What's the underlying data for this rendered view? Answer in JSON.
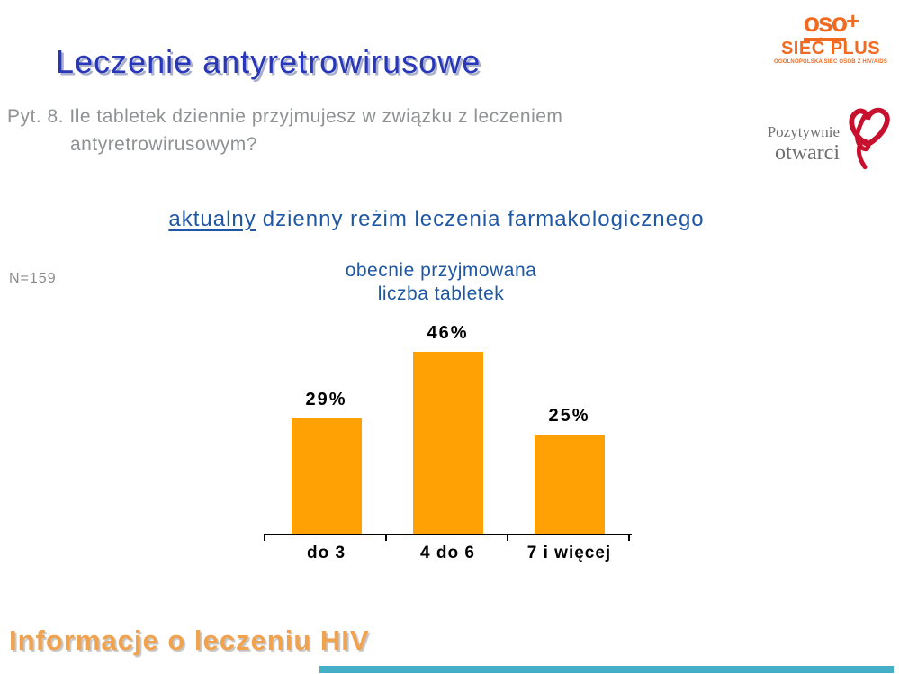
{
  "slide": {
    "title": "Leczenie antyretrowirusowe",
    "question_line1": "Pyt. 8. Ile tabletek dziennie przyjmujesz w związku z leczeniem",
    "question_line2": "antyretrowirusowym?",
    "subtitle_underlined": "aktualny",
    "subtitle_rest": "dzienny reżim leczenia farmakologicznego",
    "sample_size": "N=159",
    "footer_title": "Informacje o leczeniu HIV"
  },
  "logos": {
    "siec_plus": {
      "glyph_oso": "oso",
      "glyph_plus": "+",
      "name": "SIEĆ PLUS",
      "tagline": "OGÓLNOPOLSKA SIEĆ OSÓB Z HIV/AIDS",
      "color": "#F26A21"
    },
    "pozytywnie_otwarci": {
      "line1": "Pozytywnie",
      "line2": "otwarci",
      "text_color": "#6F6F6F",
      "heart_color": "#C8102E"
    }
  },
  "chart_data": {
    "type": "bar",
    "title_line1": "obecnie przyjmowana",
    "title_line2": "liczba tabletek",
    "categories": [
      "do 3",
      "4 do 6",
      "7 i więcej"
    ],
    "values": [
      29,
      46,
      25
    ],
    "value_labels": [
      "29%",
      "46%",
      "25%"
    ],
    "unit": "%",
    "bar_color": "#FFA005",
    "label_color": "#000000",
    "axis_color": "#000000",
    "ylim": [
      0,
      50
    ],
    "legend": "none",
    "grid": "off"
  },
  "colors": {
    "title_blue": "#2737B8",
    "accent_blue": "#1F57A5",
    "muted_gray": "#8F9193",
    "footer_orange": "#F0A24E",
    "bottom_bar_teal": "#46AFC8"
  }
}
